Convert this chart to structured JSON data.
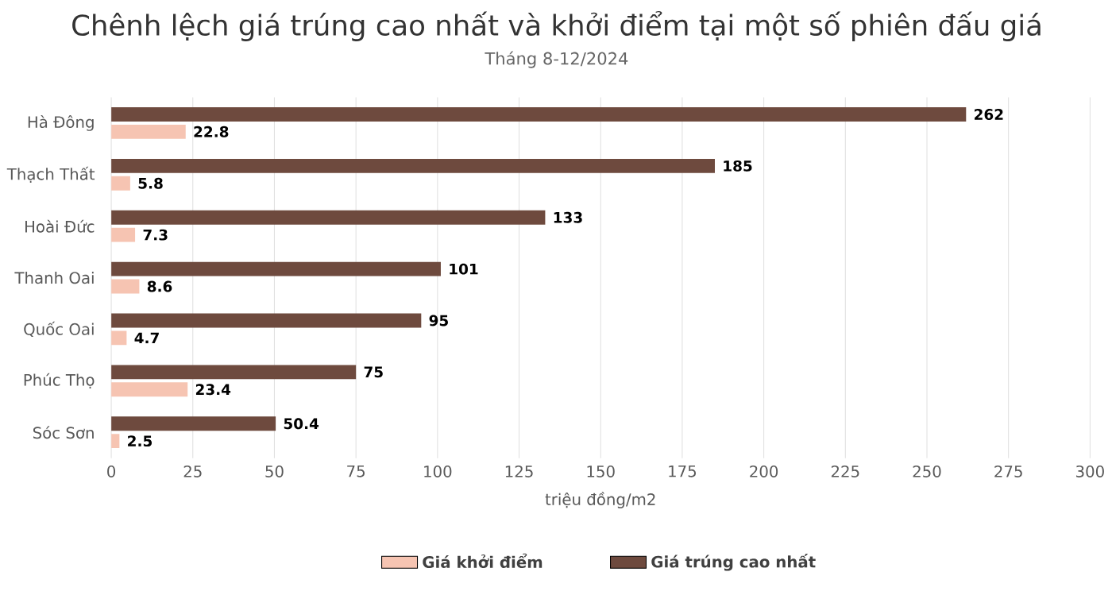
{
  "chart_data": {
    "type": "bar",
    "orientation": "horizontal",
    "title": "Chênh lệch giá trúng cao nhất và khởi điểm tại một số phiên đấu giá",
    "subtitle": "Tháng 8-12/2024",
    "xlabel": "triệu đồng/m2",
    "categories": [
      "Hà Đông",
      "Thạch Thất",
      "Hoài Đức",
      "Thanh Oai",
      "Quốc Oai",
      "Phúc Thọ",
      "Sóc Sơn"
    ],
    "series": [
      {
        "name": "Giá khởi điểm",
        "color": "#f6c4b2",
        "values": [
          22.8,
          5.8,
          7.3,
          8.6,
          4.7,
          23.4,
          2.5
        ]
      },
      {
        "name": "Giá trúng cao nhất",
        "color": "#6e4a3e",
        "values": [
          262,
          185,
          133,
          101,
          95,
          75,
          50.4
        ]
      }
    ],
    "xlim": [
      0,
      300
    ],
    "xticks": [
      0,
      25,
      50,
      75,
      100,
      125,
      150,
      175,
      200,
      225,
      250,
      275,
      300
    ],
    "grid": "x",
    "legend": "bottom",
    "data_labels": true
  }
}
